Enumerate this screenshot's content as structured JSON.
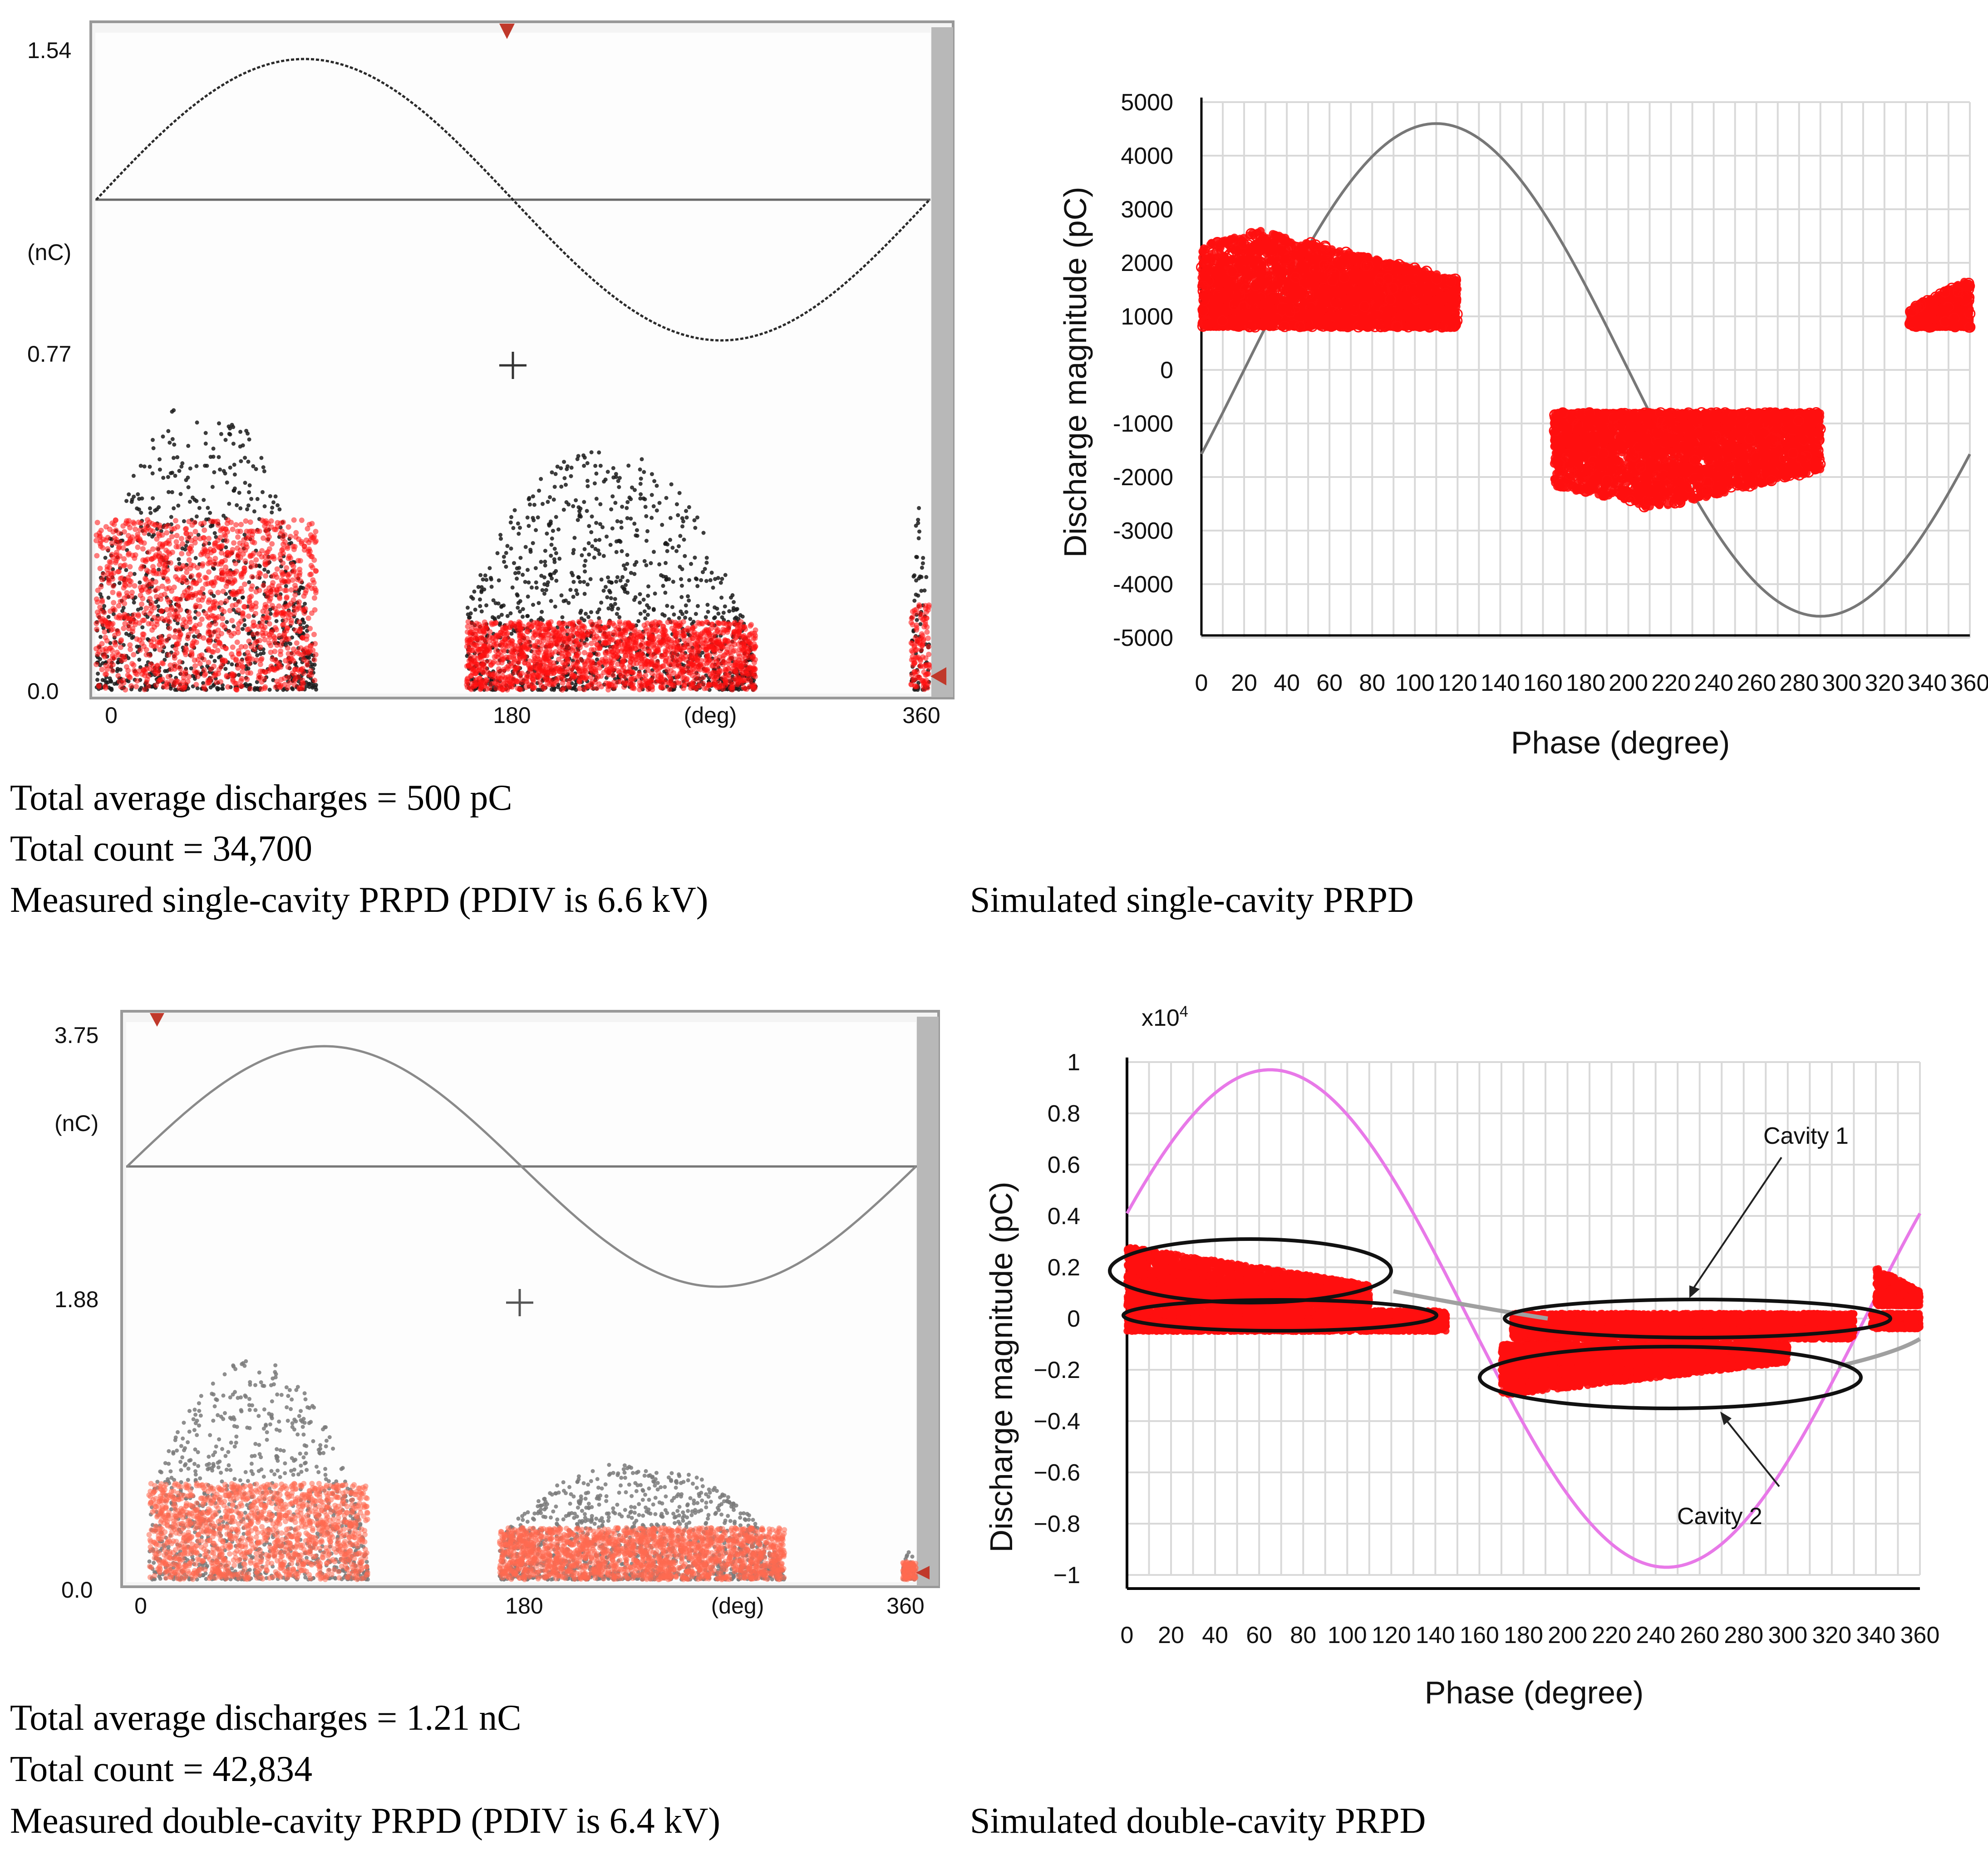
{
  "chart_data": [
    {
      "id": "measured-single",
      "type": "scatter",
      "title": "Measured single-cavity PRPD (PDIV is 6.6 kV)",
      "xlabel": "(deg)",
      "ylabel": "(nC)",
      "xlim": [
        0,
        360
      ],
      "ylim": [
        0,
        1.54
      ],
      "x_ticks": [
        "0",
        "180",
        "360"
      ],
      "y_ticks": [
        "1.54",
        "0.77",
        "0.0"
      ],
      "reference_sine": true,
      "clusters": [
        {
          "phase_range": [
            0,
            95
          ],
          "max_nC": 0.69,
          "dense_below_nC": 0.4
        },
        {
          "phase_range": [
            160,
            285
          ],
          "max_nC": 0.57,
          "dense_below_nC": 0.16
        },
        {
          "phase_range": [
            352,
            360
          ],
          "max_nC": 0.45,
          "dense_below_nC": 0.2
        }
      ],
      "stats": {
        "average": "Total average discharges = 500 pC",
        "count": "Total count = 34,700"
      }
    },
    {
      "id": "simulated-single",
      "type": "scatter",
      "title": "Simulated single-cavity PRPD",
      "xlabel": "Phase (degree)",
      "ylabel": "Discharge magnitude (pC)",
      "xlim": [
        0,
        360
      ],
      "ylim": [
        -5000,
        5000
      ],
      "x_ticks": [
        0,
        20,
        40,
        60,
        80,
        100,
        120,
        140,
        160,
        180,
        200,
        220,
        240,
        260,
        280,
        300,
        320,
        340,
        360
      ],
      "y_ticks": [
        5000,
        4000,
        3000,
        2000,
        1000,
        0,
        -1000,
        -2000,
        -3000,
        -4000,
        -5000
      ],
      "grid": true,
      "sine": {
        "amplitude": 4600,
        "phase_offset_deg": -20
      },
      "clusters": [
        {
          "phase_range": [
            0,
            120
          ],
          "min": 800,
          "max": 2600,
          "peak_phase": 28
        },
        {
          "phase_range": [
            165,
            290
          ],
          "min": -2600,
          "max": -800,
          "peak_phase": 212
        },
        {
          "phase_range": [
            332,
            360
          ],
          "min": 800,
          "max": 1700,
          "peak_phase": 360
        }
      ]
    },
    {
      "id": "measured-double",
      "type": "scatter",
      "title": "Measured double-cavity PRPD (PDIV is 6.4 kV)",
      "xlabel": "(deg)",
      "ylabel": "(nC)",
      "xlim": [
        0,
        360
      ],
      "ylim": [
        0,
        3.75
      ],
      "x_ticks": [
        "0",
        "180",
        "360"
      ],
      "y_ticks": [
        "3.75",
        "1.88",
        "0.0"
      ],
      "reference_sine": true,
      "clusters": [
        {
          "phase_range": [
            10,
            110
          ],
          "max_nC": 1.5,
          "dense_below_nC": 0.65
        },
        {
          "phase_range": [
            170,
            300
          ],
          "max_nC": 0.8,
          "dense_below_nC": 0.35
        },
        {
          "phase_range": [
            354,
            360
          ],
          "max_nC": 0.2,
          "dense_below_nC": 0.12
        }
      ],
      "stats": {
        "average": "Total average discharges = 1.21 nC",
        "count": "Total count = 42,834"
      }
    },
    {
      "id": "simulated-double",
      "type": "scatter",
      "title": "Simulated double-cavity PRPD",
      "xlabel": "Phase (degree)",
      "ylabel": "Discharge magnitude (pC)",
      "y_multiplier": "x10",
      "y_multiplier_exp": "4",
      "xlim": [
        0,
        360
      ],
      "ylim": [
        -1,
        1
      ],
      "x_ticks": [
        0,
        20,
        40,
        60,
        80,
        100,
        120,
        140,
        160,
        180,
        200,
        220,
        240,
        260,
        280,
        300,
        320,
        340,
        360
      ],
      "y_ticks": [
        "1",
        "0.8",
        "0.6",
        "0.4",
        "0.2",
        "0",
        "−0.2",
        "−0.4",
        "−0.6",
        "−0.8",
        "−1"
      ],
      "grid": true,
      "sine": {
        "amplitude": 0.97,
        "phase_offset_deg": 25,
        "color": "#e879e8"
      },
      "annotations": [
        "Cavity 1",
        "Cavity 2"
      ],
      "clusters": [
        {
          "phase_range": [
            0,
            110
          ],
          "min": 0.05,
          "max": 0.28,
          "label": "Cavity 1 positive"
        },
        {
          "phase_range": [
            0,
            145
          ],
          "min": -0.05,
          "max": 0.03,
          "label": "Cavity 2 positive"
        },
        {
          "phase_range": [
            175,
            330
          ],
          "min": -0.08,
          "max": 0.02,
          "label": "Cavity 1 negative"
        },
        {
          "phase_range": [
            170,
            300
          ],
          "min": -0.3,
          "max": -0.1,
          "label": "Cavity 2 negative"
        },
        {
          "phase_range": [
            340,
            360
          ],
          "min": 0.05,
          "max": 0.2
        },
        {
          "phase_range": [
            338,
            360
          ],
          "min": -0.04,
          "max": 0.02
        }
      ]
    }
  ],
  "captions": {
    "top_left": {
      "average": "Total average discharges = 500 pC",
      "count": "Total count = 34,700",
      "title": "Measured single-cavity PRPD (PDIV is 6.6 kV)"
    },
    "top_right": {
      "title": "Simulated single-cavity PRPD"
    },
    "bottom_left": {
      "average": "Total average discharges = 1.21 nC",
      "count": "Total count = 42,834",
      "title": "Measured double-cavity PRPD (PDIV is 6.4 kV)"
    },
    "bottom_right": {
      "title": "Simulated double-cavity PRPD"
    }
  },
  "colors": {
    "discharge_red": "#ff1010",
    "measured_black": "#1a1a1a",
    "grid": "#d9d9d9",
    "sine_gray": "#777777",
    "sine_pink": "#e879e8"
  }
}
